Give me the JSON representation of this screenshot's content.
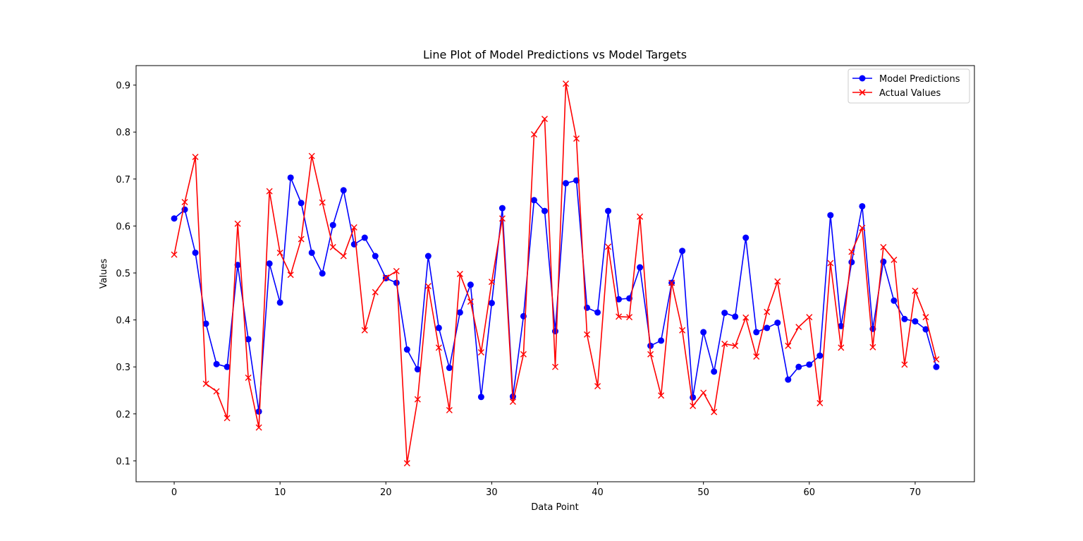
{
  "chart_data": {
    "type": "line",
    "title": "Line Plot of Model Predictions vs Model Targets",
    "xlabel": "Data Point",
    "ylabel": "Values",
    "xlim": [
      -3.6,
      75.6
    ],
    "ylim": [
      0.0555,
      0.9415
    ],
    "xticks": [
      0,
      10,
      20,
      30,
      40,
      50,
      60,
      70
    ],
    "yticks": [
      0.1,
      0.2,
      0.3,
      0.4,
      0.5,
      0.6,
      0.7,
      0.8,
      0.9
    ],
    "grid": false,
    "legend_position": "top-right",
    "x": [
      0,
      1,
      2,
      3,
      4,
      5,
      6,
      7,
      8,
      9,
      10,
      11,
      12,
      13,
      14,
      15,
      16,
      17,
      18,
      19,
      20,
      21,
      22,
      23,
      24,
      25,
      26,
      27,
      28,
      29,
      30,
      31,
      32,
      33,
      34,
      35,
      36,
      37,
      38,
      39,
      40,
      41,
      42,
      43,
      44,
      45,
      46,
      47,
      48,
      49,
      50,
      51,
      52,
      53,
      54,
      55,
      56,
      57,
      58,
      59,
      60,
      61,
      62,
      63,
      64,
      65,
      66,
      67,
      68,
      69,
      70,
      71,
      72
    ],
    "series": [
      {
        "name": "Model Predictions",
        "color": "#0000ff",
        "marker": "circle",
        "values": [
          0.616,
          0.635,
          0.543,
          0.392,
          0.306,
          0.3,
          0.517,
          0.359,
          0.205,
          0.52,
          0.437,
          0.703,
          0.649,
          0.543,
          0.499,
          0.602,
          0.676,
          0.561,
          0.575,
          0.536,
          0.489,
          0.479,
          0.337,
          0.295,
          0.536,
          0.383,
          0.298,
          0.416,
          0.475,
          0.236,
          0.436,
          0.638,
          0.237,
          0.408,
          0.655,
          0.632,
          0.376,
          0.691,
          0.697,
          0.426,
          0.416,
          0.632,
          0.444,
          0.446,
          0.512,
          0.345,
          0.356,
          0.479,
          0.547,
          0.235,
          0.374,
          0.29,
          0.415,
          0.407,
          0.575,
          0.374,
          0.383,
          0.394,
          0.273,
          0.3,
          0.305,
          0.324,
          0.623,
          0.387,
          0.523,
          0.642,
          0.381,
          0.524,
          0.441,
          0.402,
          0.397,
          0.38,
          0.3
        ]
      },
      {
        "name": "Actual Values",
        "color": "#ff0000",
        "marker": "x",
        "values": [
          0.539,
          0.651,
          0.747,
          0.264,
          0.248,
          0.191,
          0.605,
          0.277,
          0.171,
          0.674,
          0.543,
          0.496,
          0.572,
          0.749,
          0.65,
          0.555,
          0.536,
          0.597,
          0.378,
          0.459,
          0.49,
          0.504,
          0.095,
          0.231,
          0.472,
          0.341,
          0.208,
          0.498,
          0.439,
          0.331,
          0.481,
          0.616,
          0.226,
          0.327,
          0.795,
          0.828,
          0.3,
          0.903,
          0.786,
          0.369,
          0.259,
          0.556,
          0.407,
          0.406,
          0.62,
          0.327,
          0.239,
          0.479,
          0.378,
          0.217,
          0.245,
          0.204,
          0.349,
          0.345,
          0.405,
          0.322,
          0.417,
          0.482,
          0.345,
          0.385,
          0.406,
          0.223,
          0.521,
          0.341,
          0.545,
          0.596,
          0.342,
          0.555,
          0.528,
          0.305,
          0.462,
          0.406,
          0.316
        ]
      }
    ]
  }
}
